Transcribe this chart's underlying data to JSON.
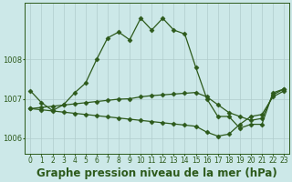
{
  "title": "Graphe pression niveau de la mer (hPa)",
  "xlabel_hours": [
    0,
    1,
    2,
    3,
    4,
    5,
    6,
    7,
    8,
    9,
    10,
    11,
    12,
    13,
    14,
    15,
    16,
    17,
    18,
    19,
    20,
    21,
    22,
    23
  ],
  "series1": [
    1007.2,
    1006.9,
    1006.7,
    1006.85,
    1007.15,
    1007.4,
    1008.0,
    1008.55,
    1008.7,
    1008.5,
    1009.05,
    1008.75,
    1009.05,
    1008.75,
    1008.65,
    1007.8,
    1007.0,
    1006.55,
    1006.55,
    1006.25,
    1006.35,
    1006.35,
    1007.15,
    1007.25
  ],
  "series2": [
    1006.75,
    1006.72,
    1006.69,
    1006.66,
    1006.63,
    1006.6,
    1006.57,
    1006.54,
    1006.51,
    1006.48,
    1006.45,
    1006.42,
    1006.39,
    1006.36,
    1006.33,
    1006.3,
    1006.15,
    1006.05,
    1006.1,
    1006.35,
    1006.55,
    1006.6,
    1007.05,
    1007.2
  ],
  "series3": [
    1006.75,
    1006.78,
    1006.81,
    1006.84,
    1006.87,
    1006.9,
    1006.93,
    1006.96,
    1006.99,
    1007.0,
    1007.05,
    1007.08,
    1007.1,
    1007.12,
    1007.14,
    1007.16,
    1007.05,
    1006.85,
    1006.65,
    1006.55,
    1006.45,
    1006.5,
    1007.1,
    1007.25
  ],
  "bg_color": "#cce8e8",
  "grid_color": "#b0cccc",
  "line_color": "#2d5a1b",
  "marker": "D",
  "ylim_min": 1005.6,
  "ylim_max": 1009.45,
  "yticks": [
    1006,
    1007,
    1008
  ],
  "title_fontsize": 8.5,
  "tick_fontsize": 6.0,
  "fig_width": 3.2,
  "fig_height": 2.0,
  "dpi": 100
}
